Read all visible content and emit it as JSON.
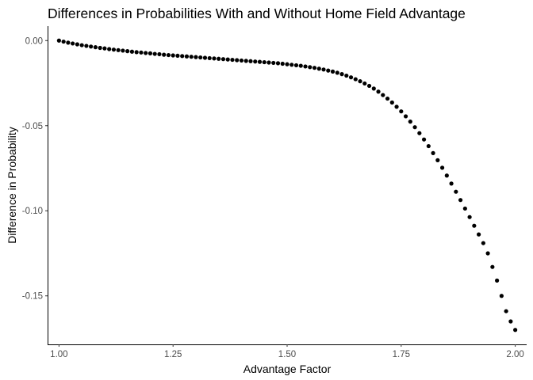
{
  "chart_data": {
    "type": "scatter",
    "title": "Differences in Probabilities With and Without Home Field Advantage",
    "xlabel": "Advantage Factor",
    "ylabel": "Difference in Probability",
    "xlim": [
      0.975,
      2.025
    ],
    "ylim": [
      -0.1785,
      0.0085
    ],
    "grid": false,
    "legend": "none",
    "x_ticks": [
      1.0,
      1.25,
      1.5,
      1.75,
      2.0
    ],
    "x_tick_labels": [
      "1.00",
      "1.25",
      "1.50",
      "1.75",
      "2.00"
    ],
    "y_ticks": [
      0.0,
      -0.05,
      -0.1,
      -0.15
    ],
    "y_tick_labels": [
      "0.00",
      "-0.05",
      "-0.10",
      "-0.15"
    ],
    "point_color": "#000000",
    "series": [
      {
        "x": [
          1.0,
          1.01,
          1.02,
          1.03,
          1.04,
          1.05,
          1.06,
          1.07,
          1.08,
          1.09,
          1.1,
          1.11,
          1.12,
          1.13,
          1.14,
          1.15,
          1.16,
          1.17,
          1.18,
          1.19,
          1.2,
          1.21,
          1.22,
          1.23,
          1.24,
          1.25,
          1.26,
          1.27,
          1.28,
          1.29,
          1.3,
          1.31,
          1.32,
          1.33,
          1.34,
          1.35,
          1.36,
          1.37,
          1.38,
          1.39,
          1.4,
          1.41,
          1.42,
          1.43,
          1.44,
          1.45,
          1.46,
          1.47,
          1.48,
          1.49,
          1.5,
          1.51,
          1.52,
          1.53,
          1.54,
          1.55,
          1.56,
          1.57,
          1.58,
          1.59,
          1.6,
          1.61,
          1.62,
          1.63,
          1.64,
          1.65,
          1.66,
          1.67,
          1.68,
          1.69,
          1.7,
          1.71,
          1.72,
          1.73,
          1.74,
          1.75,
          1.76,
          1.77,
          1.78,
          1.79,
          1.8,
          1.81,
          1.82,
          1.83,
          1.84,
          1.85,
          1.86,
          1.87,
          1.88,
          1.89,
          1.9,
          1.91,
          1.92,
          1.93,
          1.94,
          1.95,
          1.96,
          1.97,
          1.98,
          1.99,
          2.0
        ],
        "y": [
          0.0,
          -0.0006,
          -0.0012,
          -0.0017,
          -0.0022,
          -0.0027,
          -0.0031,
          -0.0035,
          -0.0039,
          -0.0043,
          -0.0046,
          -0.005,
          -0.0053,
          -0.0056,
          -0.0059,
          -0.0062,
          -0.0065,
          -0.0068,
          -0.007,
          -0.0073,
          -0.0075,
          -0.0078,
          -0.008,
          -0.0083,
          -0.0085,
          -0.0087,
          -0.0089,
          -0.0091,
          -0.0093,
          -0.0095,
          -0.0097,
          -0.0099,
          -0.0101,
          -0.0103,
          -0.0105,
          -0.0107,
          -0.0109,
          -0.0111,
          -0.0113,
          -0.0115,
          -0.0117,
          -0.0119,
          -0.0121,
          -0.0123,
          -0.0125,
          -0.0127,
          -0.0129,
          -0.0131,
          -0.0133,
          -0.0136,
          -0.0139,
          -0.0142,
          -0.0145,
          -0.0148,
          -0.0152,
          -0.0156,
          -0.016,
          -0.0165,
          -0.017,
          -0.0176,
          -0.0182,
          -0.0189,
          -0.0197,
          -0.0206,
          -0.0216,
          -0.0227,
          -0.0239,
          -0.0252,
          -0.0266,
          -0.0282,
          -0.03,
          -0.032,
          -0.0341,
          -0.0364,
          -0.0389,
          -0.0416,
          -0.0445,
          -0.0476,
          -0.0509,
          -0.0544,
          -0.0581,
          -0.062,
          -0.0661,
          -0.0703,
          -0.0747,
          -0.0793,
          -0.084,
          -0.0888,
          -0.0937,
          -0.0987,
          -0.1037,
          -0.1088,
          -0.1139,
          -0.119,
          -0.125,
          -0.133,
          -0.141,
          -0.15,
          -0.159,
          -0.165,
          -0.17
        ]
      }
    ]
  }
}
